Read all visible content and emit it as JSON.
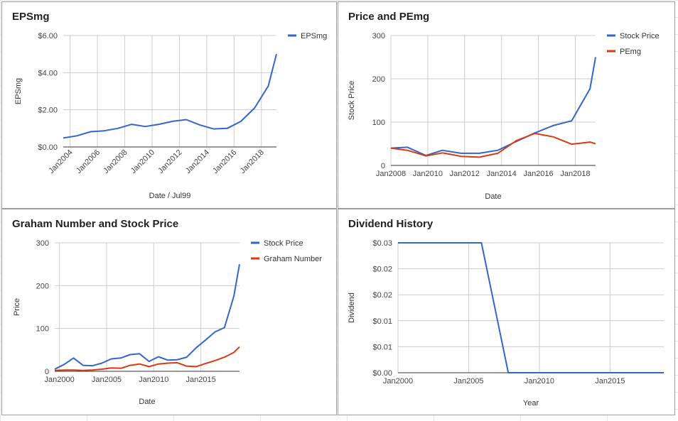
{
  "charts": {
    "eps": {
      "title": "EPSmg",
      "chart_data": {
        "type": "line",
        "title": "EPSmg",
        "xlabel": "Date / Jul99",
        "ylabel": "EPSmg",
        "xlim": [
          2003.5,
          2019.1
        ],
        "ylim": [
          0,
          6
        ],
        "yticks": [
          0,
          2,
          4,
          6
        ],
        "ytick_labels": [
          "$0.00",
          "$2.00",
          "$4.00",
          "$6.00"
        ],
        "xticks": [
          2004,
          2006,
          2008,
          2010,
          2012,
          2014,
          2016,
          2018
        ],
        "xtick_labels": [
          "Jan2004",
          "Jan2006",
          "Jan2008",
          "Jan2010",
          "Jan2012",
          "Jan2014",
          "Jan2016",
          "Jan2018"
        ],
        "legend": "top-right",
        "series": [
          {
            "name": "EPSmg",
            "color": "#3366cc",
            "x": [
              2003.5,
              2004.5,
              2005.5,
              2006.5,
              2007.5,
              2008.5,
              2009.5,
              2010.5,
              2011.5,
              2012.5,
              2013.5,
              2014.5,
              2015.5,
              2016.5,
              2017.5,
              2018.5,
              2019.1
            ],
            "y": [
              0.48,
              0.6,
              0.82,
              0.87,
              1.0,
              1.22,
              1.1,
              1.22,
              1.38,
              1.47,
              1.18,
              0.97,
              1.0,
              1.38,
              2.1,
              3.28,
              5.0
            ]
          }
        ]
      }
    },
    "pe": {
      "title": "Price and PEmg",
      "chart_data": {
        "type": "line",
        "title": "Price and PEmg",
        "xlabel": "Date",
        "ylabel": "Stock Price",
        "xlim": [
          2008,
          2019.1
        ],
        "ylim": [
          0,
          300
        ],
        "yticks": [
          0,
          100,
          200,
          300
        ],
        "ytick_labels": [
          "0",
          "100",
          "200",
          "300"
        ],
        "xticks": [
          2008,
          2010,
          2012,
          2014,
          2016,
          2018
        ],
        "xtick_labels": [
          "Jan2008",
          "Jan2010",
          "Jan2012",
          "Jan2014",
          "Jan2016",
          "Jan2018"
        ],
        "legend": "top-right",
        "series": [
          {
            "name": "Stock Price",
            "color": "#3366cc",
            "x": [
              2008,
              2008.9,
              2009.9,
              2010.8,
              2011.8,
              2012.8,
              2013.8,
              2014.8,
              2015.8,
              2016.8,
              2017.8,
              2018.8,
              2019.1
            ],
            "y": [
              40,
              42,
              23,
              35,
              28,
              28,
              35,
              55,
              75,
              92,
              103,
              177,
              250
            ]
          },
          {
            "name": "PEmg",
            "color": "#dc3912",
            "x": [
              2008,
              2008.9,
              2009.9,
              2010.8,
              2011.8,
              2012.8,
              2013.8,
              2014.8,
              2015.8,
              2016.8,
              2017.8,
              2018.8,
              2019.1
            ],
            "y": [
              40,
              35,
              22,
              29,
              21,
              19,
              28,
              57,
              74,
              66,
              49,
              54,
              50
            ]
          }
        ]
      }
    },
    "graham": {
      "title": "Graham Number and Stock Price",
      "chart_data": {
        "type": "line",
        "title": "Graham Number and Stock Price",
        "xlabel": "Date",
        "ylabel": "Price",
        "xlim": [
          1999.5,
          2019.1
        ],
        "ylim": [
          0,
          300
        ],
        "yticks": [
          0,
          100,
          200,
          300
        ],
        "ytick_labels": [
          "0",
          "100",
          "200",
          "300"
        ],
        "xticks": [
          2000,
          2005,
          2010,
          2015
        ],
        "xtick_labels": [
          "Jan2000",
          "Jan2005",
          "Jan2010",
          "Jan2015"
        ],
        "legend": "top-right",
        "series": [
          {
            "name": "Stock Price",
            "color": "#3366cc",
            "x": [
              1999.5,
              2000.5,
              2001.5,
              2002.5,
              2003.5,
              2004.5,
              2005.5,
              2006.5,
              2007.5,
              2008.5,
              2009.5,
              2010.5,
              2011.5,
              2012.5,
              2013.5,
              2014.5,
              2015.5,
              2016.5,
              2017.5,
              2018.5,
              2019.1
            ],
            "y": [
              5,
              16,
              31,
              14,
              13,
              19,
              29,
              31,
              39,
              41,
              23,
              34,
              26,
              27,
              33,
              55,
              73,
              92,
              102,
              175,
              250
            ]
          },
          {
            "name": "Graham Number",
            "color": "#dc3912",
            "x": [
              1999.5,
              2000.5,
              2001.5,
              2002.5,
              2003.5,
              2004.5,
              2005.5,
              2006.5,
              2007.5,
              2008.5,
              2009.5,
              2010.5,
              2011.5,
              2012.5,
              2013.5,
              2014.5,
              2015.5,
              2016.5,
              2017.5,
              2018.5,
              2019.1
            ],
            "y": [
              2,
              3,
              3,
              2,
              3,
              5,
              8,
              7,
              14,
              17,
              11,
              17,
              19,
              20,
              12,
              11,
              18,
              25,
              33,
              44,
              57
            ]
          }
        ]
      }
    },
    "dividend": {
      "title": "Dividend History",
      "chart_data": {
        "type": "line",
        "title": "Dividend History",
        "xlabel": "Year",
        "ylabel": "Dividend",
        "xlim": [
          2000,
          2018.8
        ],
        "ylim": [
          0,
          0.025
        ],
        "yticks": [
          0,
          0.005,
          0.01,
          0.015,
          0.02,
          0.025
        ],
        "ytick_labels": [
          "$0.00",
          "$0.01",
          "$0.01",
          "$0.02",
          "$0.02",
          "$0.03"
        ],
        "xticks": [
          2000,
          2005,
          2010,
          2015
        ],
        "xtick_labels": [
          "Jan2000",
          "Jan2005",
          "Jan2010",
          "Jan2015"
        ],
        "legend": "none",
        "series": [
          {
            "color": "#3366cc",
            "x": [
              2000,
              2005.9,
              2007.8,
              2018.8
            ],
            "y": [
              0.025,
              0.025,
              0,
              0
            ]
          }
        ]
      }
    }
  }
}
